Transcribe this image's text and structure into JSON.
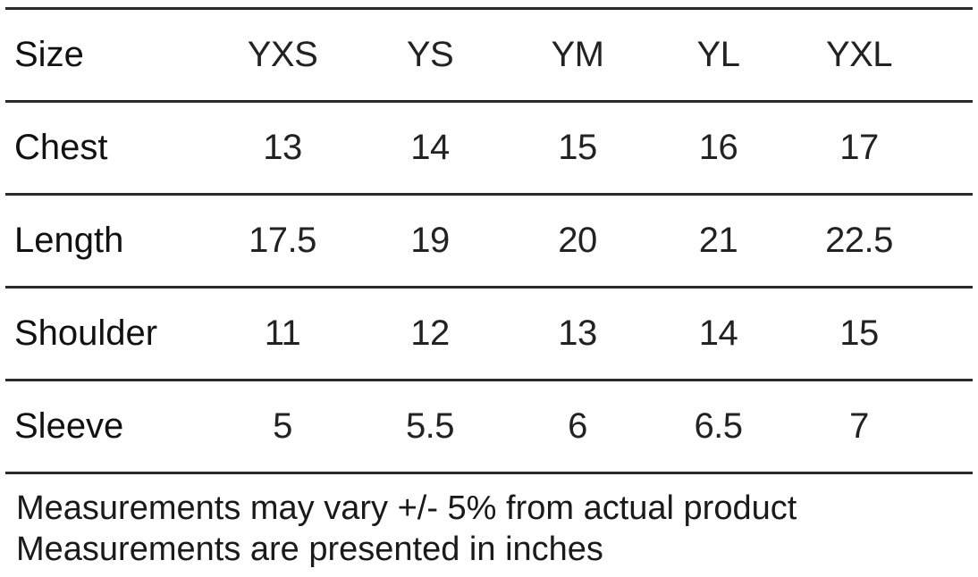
{
  "table": {
    "header": {
      "label": "Size",
      "sizes": [
        "YXS",
        "YS",
        "YM",
        "YL",
        "YXL"
      ]
    },
    "rows": [
      {
        "label": "Chest",
        "values": [
          "13",
          "14",
          "15",
          "16",
          "17"
        ]
      },
      {
        "label": "Length",
        "values": [
          "17.5",
          "19",
          "20",
          "21",
          "22.5"
        ]
      },
      {
        "label": "Shoulder",
        "values": [
          "11",
          "12",
          "13",
          "14",
          "15"
        ]
      },
      {
        "label": "Sleeve",
        "values": [
          "5",
          "5.5",
          "6",
          "6.5",
          "7"
        ]
      }
    ]
  },
  "notes": [
    "Measurements may vary +/- 5% from actual product",
    "Measurements are presented in inches"
  ]
}
